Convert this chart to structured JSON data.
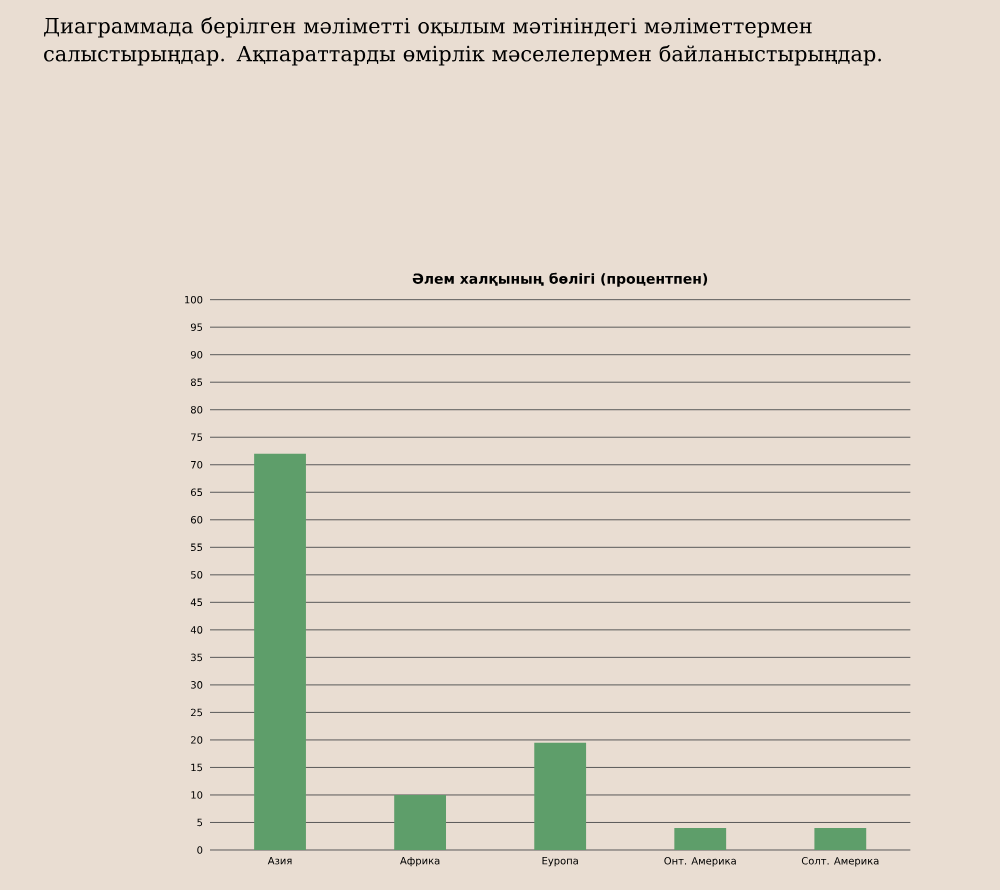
{
  "chart_data": {
    "type": "bar",
    "title": "Әлем халқының бөлігі (процентпен)",
    "annotations": [
      "Диаграммада берілген мәліметті оқылым мәтініндегі мәліметтермен салыстырыңдар. Ақпараттарды өмірлік мәселелермен байланыстырыңдар."
    ],
    "categories": [
      "Азия",
      "Африка",
      "Еуропа",
      "Онт. Америка",
      "Солт. Америка"
    ],
    "values": [
      72,
      10,
      19.5,
      4,
      4
    ],
    "color": "#5e9e6a",
    "ylim": [
      0,
      100
    ],
    "yticks": [
      0,
      5,
      10,
      15,
      20,
      25,
      30,
      35,
      40,
      45,
      50,
      55,
      60,
      65,
      70,
      75,
      80,
      85,
      90,
      95,
      100
    ],
    "grid": "y"
  }
}
